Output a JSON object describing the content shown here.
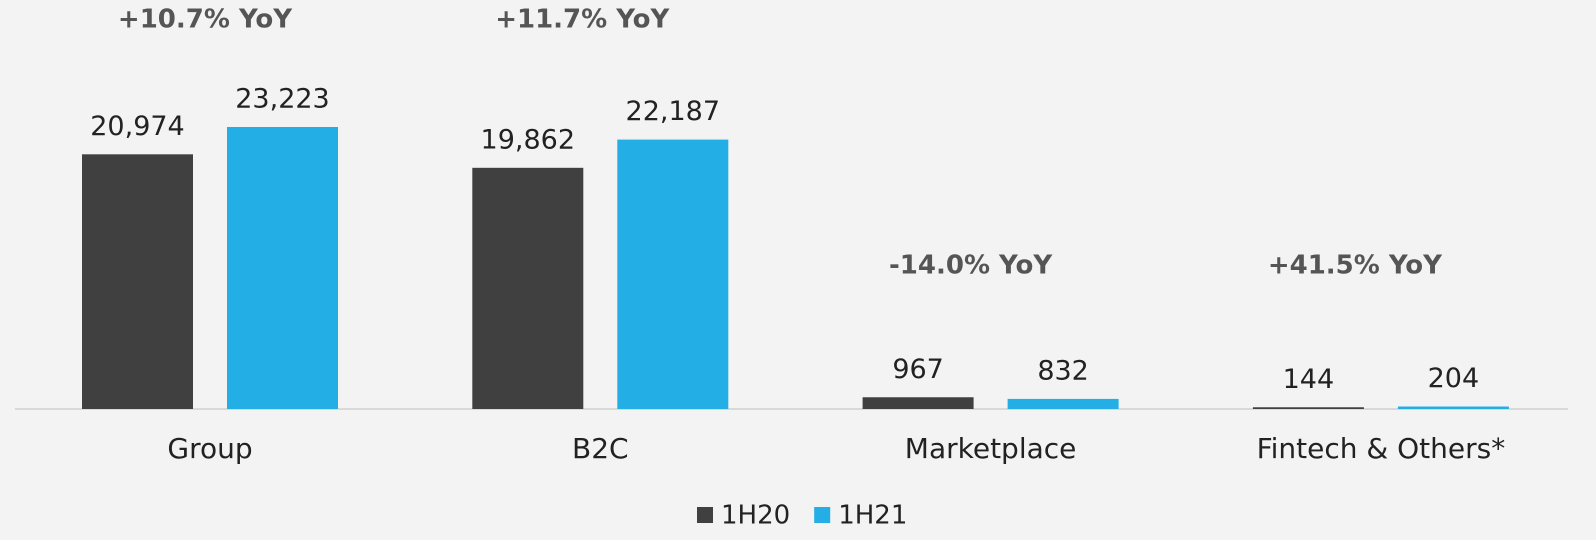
{
  "chart_data": {
    "type": "bar",
    "categories": [
      "Group",
      "B2C",
      "Marketplace",
      "Fintech & Others*"
    ],
    "series": [
      {
        "name": "1H20",
        "color": "#404040",
        "values": [
          20974,
          19862,
          967,
          144
        ],
        "value_labels": [
          "20,974",
          "19,862",
          "967",
          "144"
        ]
      },
      {
        "name": "1H21",
        "color": "#23aee5",
        "values": [
          23223,
          22187,
          832,
          204
        ],
        "value_labels": [
          "23,223",
          "22,187",
          "832",
          "204"
        ]
      }
    ],
    "annotations": [
      "+10.7% YoY",
      "+11.7% YoY",
      "-14.0% YoY",
      "+41.5% YoY"
    ]
  }
}
